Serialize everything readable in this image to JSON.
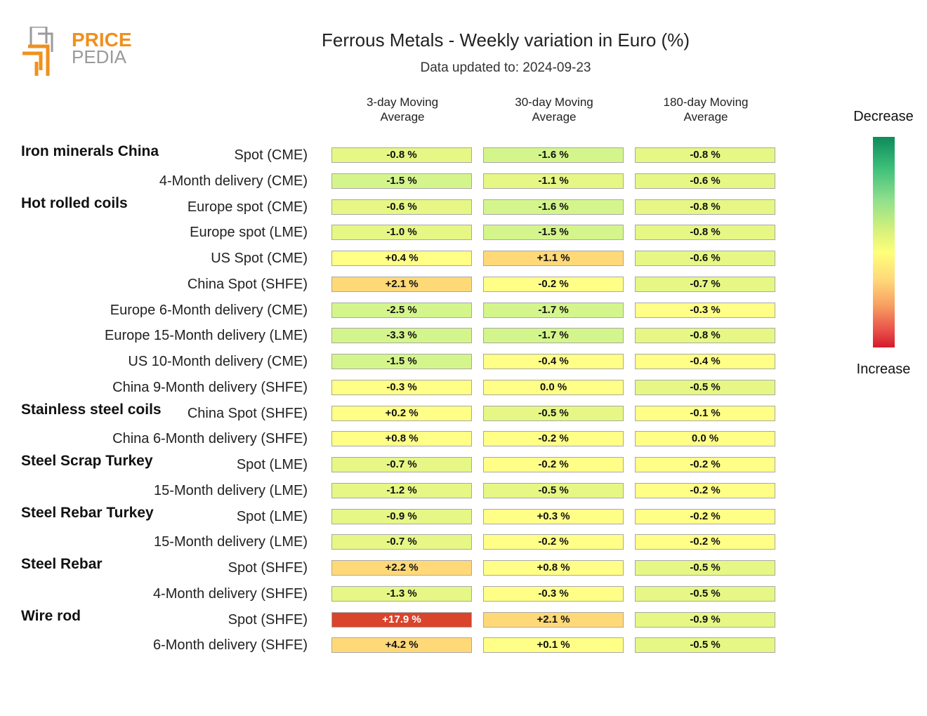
{
  "logo": {
    "line1": "PRICE",
    "line2": "PEDIA",
    "colors": {
      "orange": "#f0901e",
      "gray": "#9a9a9a"
    }
  },
  "chart_data": {
    "type": "table",
    "title": "Ferrous Metals - Weekly variation in Euro (%)",
    "subtitle": "Data updated to: 2024-09-23",
    "columns": [
      "3-day Moving\nAverage",
      "30-day Moving\nAverage",
      "180-day Moving\nAverage"
    ],
    "legend": {
      "top": "Decrease",
      "bottom": "Increase"
    },
    "rows": [
      {
        "group": "Iron minerals China",
        "label": "Spot (CME)",
        "values": [
          -0.8,
          -1.6,
          -0.8
        ],
        "text": [
          "-0.8 %",
          "-1.6 %",
          "-0.8 %"
        ]
      },
      {
        "group": "",
        "label": "4-Month delivery (CME)",
        "values": [
          -1.5,
          -1.1,
          -0.6
        ],
        "text": [
          "-1.5 %",
          "-1.1 %",
          "-0.6 %"
        ]
      },
      {
        "group": "Hot rolled coils",
        "label": "Europe spot (CME)",
        "values": [
          -0.6,
          -1.6,
          -0.8
        ],
        "text": [
          "-0.6 %",
          "-1.6 %",
          "-0.8 %"
        ]
      },
      {
        "group": "",
        "label": "Europe spot (LME)",
        "values": [
          -1.0,
          -1.5,
          -0.8
        ],
        "text": [
          "-1.0 %",
          "-1.5 %",
          "-0.8 %"
        ]
      },
      {
        "group": "",
        "label": "US Spot (CME)",
        "values": [
          0.4,
          1.1,
          -0.6
        ],
        "text": [
          "+0.4 %",
          "+1.1 %",
          "-0.6 %"
        ]
      },
      {
        "group": "",
        "label": "China Spot (SHFE)",
        "values": [
          2.1,
          -0.2,
          -0.7
        ],
        "text": [
          "+2.1 %",
          "-0.2 %",
          "-0.7 %"
        ]
      },
      {
        "group": "",
        "label": "Europe 6-Month delivery (CME)",
        "values": [
          -2.5,
          -1.7,
          -0.3
        ],
        "text": [
          "-2.5 %",
          "-1.7 %",
          "-0.3 %"
        ]
      },
      {
        "group": "",
        "label": "Europe 15-Month delivery (LME)",
        "values": [
          -3.3,
          -1.7,
          -0.8
        ],
        "text": [
          "-3.3 %",
          "-1.7 %",
          "-0.8 %"
        ]
      },
      {
        "group": "",
        "label": "US 10-Month delivery (CME)",
        "values": [
          -1.5,
          -0.4,
          -0.4
        ],
        "text": [
          "-1.5 %",
          "-0.4 %",
          "-0.4 %"
        ]
      },
      {
        "group": "",
        "label": "China 9-Month delivery (SHFE)",
        "values": [
          -0.3,
          0.0,
          -0.5
        ],
        "text": [
          "-0.3 %",
          "0.0 %",
          "-0.5 %"
        ]
      },
      {
        "group": "Stainless steel coils",
        "label": "China Spot (SHFE)",
        "values": [
          0.2,
          -0.5,
          -0.1
        ],
        "text": [
          "+0.2 %",
          "-0.5 %",
          "-0.1 %"
        ]
      },
      {
        "group": "",
        "label": "China 6-Month delivery (SHFE)",
        "values": [
          0.8,
          -0.2,
          0.0
        ],
        "text": [
          "+0.8 %",
          "-0.2 %",
          "0.0 %"
        ]
      },
      {
        "group": "Steel Scrap Turkey",
        "label": "Spot (LME)",
        "values": [
          -0.7,
          -0.2,
          -0.2
        ],
        "text": [
          "-0.7 %",
          "-0.2 %",
          "-0.2 %"
        ]
      },
      {
        "group": "",
        "label": "15-Month delivery (LME)",
        "values": [
          -1.2,
          -0.5,
          -0.2
        ],
        "text": [
          "-1.2 %",
          "-0.5 %",
          "-0.2 %"
        ]
      },
      {
        "group": "Steel Rebar Turkey",
        "label": "Spot (LME)",
        "values": [
          -0.9,
          0.3,
          -0.2
        ],
        "text": [
          "-0.9 %",
          "+0.3 %",
          "-0.2 %"
        ]
      },
      {
        "group": "",
        "label": "15-Month delivery (LME)",
        "values": [
          -0.7,
          -0.2,
          -0.2
        ],
        "text": [
          "-0.7 %",
          "-0.2 %",
          "-0.2 %"
        ]
      },
      {
        "group": "Steel Rebar",
        "label": "Spot (SHFE)",
        "values": [
          2.2,
          0.8,
          -0.5
        ],
        "text": [
          "+2.2 %",
          "+0.8 %",
          "-0.5 %"
        ]
      },
      {
        "group": "",
        "label": "4-Month delivery (SHFE)",
        "values": [
          -1.3,
          -0.3,
          -0.5
        ],
        "text": [
          "-1.3 %",
          "-0.3 %",
          "-0.5 %"
        ]
      },
      {
        "group": "Wire rod",
        "label": "Spot (SHFE)",
        "values": [
          17.9,
          2.1,
          -0.9
        ],
        "text": [
          "+17.9 %",
          "+2.1 %",
          "-0.9 %"
        ]
      },
      {
        "group": "",
        "label": "6-Month delivery (SHFE)",
        "values": [
          4.2,
          0.1,
          -0.5
        ],
        "text": [
          "+4.2 %",
          "+0.1 %",
          "-0.5 %"
        ]
      }
    ],
    "colors": {
      "strong_decrease": "#0e8a5c",
      "decrease": "#d4f58c",
      "neutral": "#ffff88",
      "increase": "#ffd978",
      "strong_increase": "#d9442c"
    }
  }
}
